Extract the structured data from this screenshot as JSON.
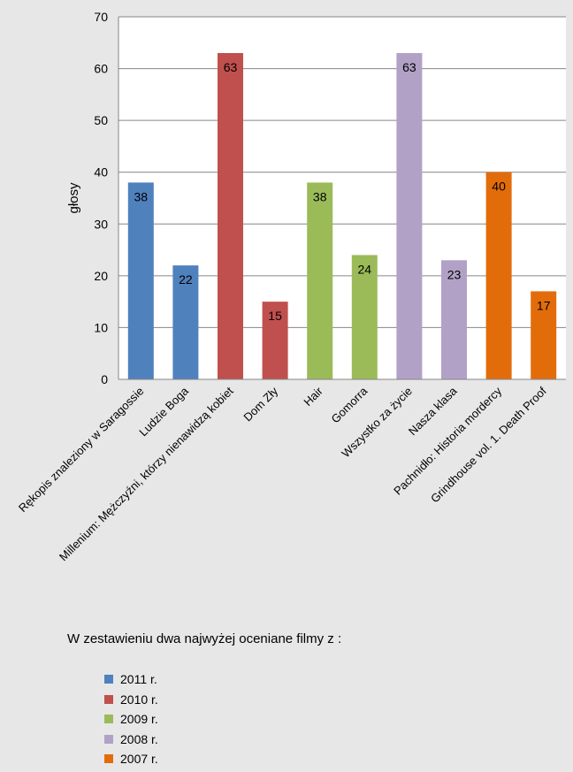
{
  "chart_data": {
    "type": "bar",
    "ylabel": "głosy",
    "ylim": [
      0,
      70
    ],
    "yticks": [
      0,
      10,
      20,
      30,
      40,
      50,
      60,
      70
    ],
    "grid": true,
    "categories": [
      "Rękopis znaleziony w Saragossie",
      "Ludzie Boga",
      "Millenium: Mężczyźni,  którzy nienawidzą kobiet",
      "Dom Zły",
      "Hair",
      "Gomorra",
      "Wszystko za życie",
      "Nasza klasa",
      "Pachnidło: Historia mordercy",
      "Grindhouse vol. 1. Death Proof"
    ],
    "values": [
      38,
      22,
      63,
      15,
      38,
      24,
      63,
      23,
      40,
      17
    ],
    "bar_colors": [
      "#4f81bd",
      "#4f81bd",
      "#c0504d",
      "#c0504d",
      "#9bbb59",
      "#9bbb59",
      "#b2a1c7",
      "#b2a1c7",
      "#e36c0a",
      "#e36c0a"
    ]
  },
  "legend": {
    "title": "W zestawieniu dwa najwyżej oceniane filmy z :",
    "items": [
      {
        "label": "2011 r.",
        "color": "#4f81bd"
      },
      {
        "label": "2010 r.",
        "color": "#c0504d"
      },
      {
        "label": "2009 r.",
        "color": "#9bbb59"
      },
      {
        "label": "2008 r.",
        "color": "#b2a1c7"
      },
      {
        "label": "2007 r.",
        "color": "#e36c0a"
      }
    ]
  }
}
